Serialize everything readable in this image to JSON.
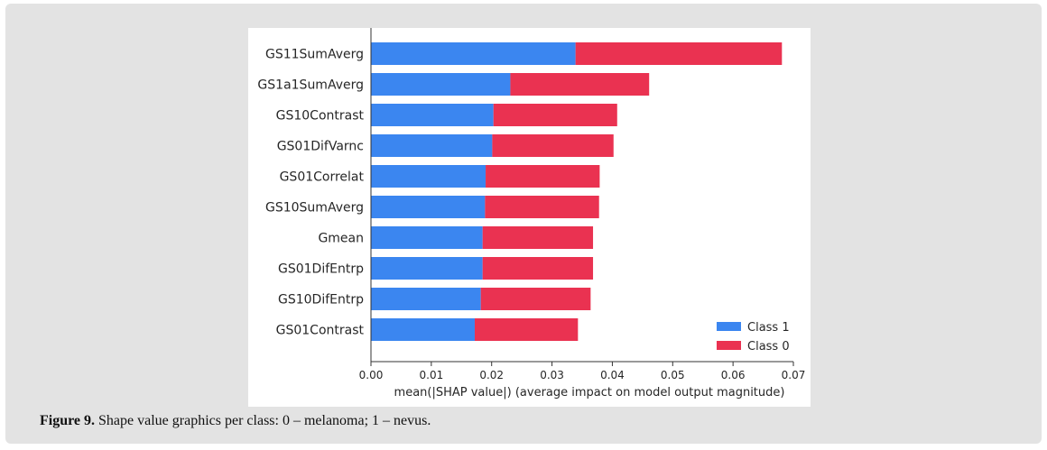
{
  "chart_data": {
    "type": "bar",
    "orientation": "horizontal",
    "stacked": true,
    "categories": [
      "GS11SumAverg",
      "GS1a1SumAverg",
      "GS10Contrast",
      "GS01DifVarnc",
      "GS01Correlat",
      "GS10SumAverg",
      "Gmean",
      "GS01DifEntrp",
      "GS10DifEntrp",
      "GS01Contrast"
    ],
    "series": [
      {
        "name": "Class 1",
        "color": "#3b86f0",
        "values": [
          0.0339,
          0.0231,
          0.0203,
          0.0201,
          0.019,
          0.0189,
          0.0185,
          0.0185,
          0.0182,
          0.0172
        ]
      },
      {
        "name": "Class 0",
        "color": "#ea3251",
        "values": [
          0.0342,
          0.023,
          0.0205,
          0.0201,
          0.0189,
          0.0189,
          0.0183,
          0.0183,
          0.0182,
          0.0171
        ]
      }
    ],
    "xlabel": "mean(|SHAP value|) (average impact on model output magnitude)",
    "ylabel": "",
    "xlim": [
      0,
      0.07
    ],
    "xticks": [
      "0.00",
      "0.01",
      "0.02",
      "0.03",
      "0.04",
      "0.05",
      "0.06",
      "0.07"
    ],
    "grid": false,
    "legend_position": "lower-right"
  },
  "caption": {
    "label": "Figure 9.",
    "text": " Shape value graphics per class: 0 – melanoma; 1 – nevus."
  }
}
